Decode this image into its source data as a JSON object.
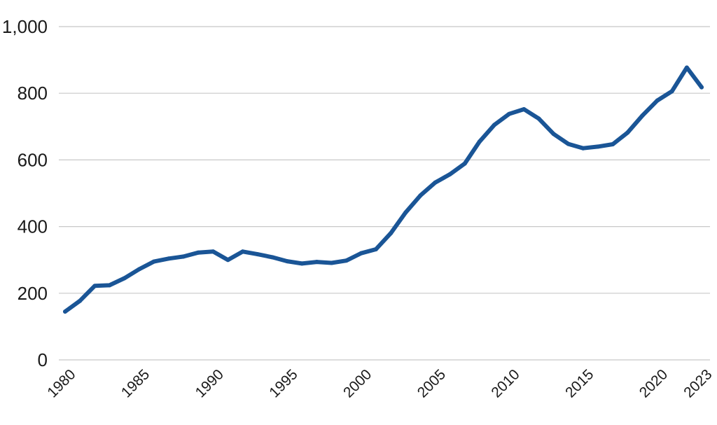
{
  "chart_data": {
    "type": "line",
    "title": "",
    "xlabel": "",
    "ylabel": "",
    "xlim": [
      1980,
      2023
    ],
    "ylim": [
      0,
      1000
    ],
    "grid": true,
    "y_ticks": [
      0,
      200,
      400,
      600,
      800,
      1000
    ],
    "y_tick_labels": [
      "0",
      "200",
      "400",
      "600",
      "800",
      "1,000"
    ],
    "x_ticks": [
      1980,
      1985,
      1990,
      1995,
      2000,
      2005,
      2010,
      2015,
      2020,
      2023
    ],
    "x_tick_labels": [
      "1980",
      "1985",
      "1990",
      "1995",
      "2000",
      "2005",
      "2010",
      "2015",
      "2020",
      "2023"
    ],
    "colors": {
      "line": "#1a5596",
      "grid": "#c8c8c8",
      "text": "#1a1a1a"
    },
    "series": [
      {
        "x": [
          1980,
          1981,
          1982,
          1983,
          1984,
          1985,
          1986,
          1987,
          1988,
          1989,
          1990,
          1991,
          1992,
          1993,
          1994,
          1995,
          1996,
          1997,
          1998,
          1999,
          2000,
          2001,
          2002,
          2003,
          2004,
          2005,
          2006,
          2007,
          2008,
          2009,
          2010,
          2011,
          2012,
          2013,
          2014,
          2015,
          2016,
          2017,
          2018,
          2019,
          2020,
          2021,
          2022,
          2023
        ],
        "values": [
          145,
          177,
          222,
          224,
          245,
          272,
          295,
          304,
          310,
          322,
          325,
          300,
          325,
          317,
          308,
          296,
          289,
          294,
          291,
          298,
          320,
          332,
          380,
          442,
          493,
          532,
          557,
          589,
          655,
          705,
          738,
          752,
          724,
          678,
          648,
          635,
          640,
          647,
          682,
          733,
          778,
          806,
          877,
          818
        ]
      }
    ]
  }
}
